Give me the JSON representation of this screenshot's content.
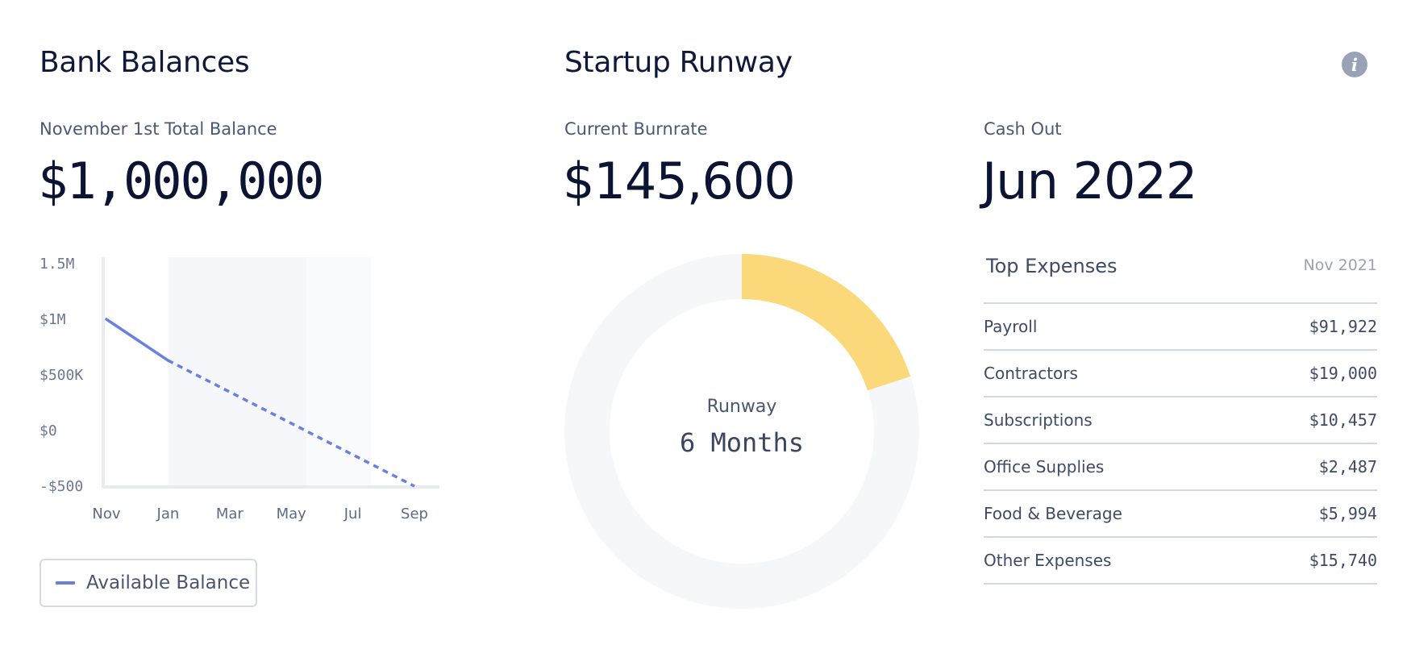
{
  "bank": {
    "title": "Bank Balances",
    "balance_label": "November 1st Total Balance",
    "balance_value": "$1,000,000"
  },
  "runway": {
    "title": "Startup Runway",
    "burnrate_label": "Current Burnrate",
    "burnrate_value": "$145,600",
    "cashout_label": "Cash Out",
    "cashout_value": "Jun 2022",
    "center_label": "Runway",
    "center_value": "6 Months"
  },
  "icons": {
    "info": "info-icon"
  },
  "legend": {
    "label": "Available Balance",
    "color": "#6b7fe0"
  },
  "expenses": {
    "title": "Top Expenses",
    "date": "Nov 2021",
    "rows": [
      {
        "name": "Payroll",
        "amount": "$91,922"
      },
      {
        "name": "Contractors",
        "amount": "$19,000"
      },
      {
        "name": "Subscriptions",
        "amount": "$10,457"
      },
      {
        "name": "Office Supplies",
        "amount": "$2,487"
      },
      {
        "name": "Food & Beverage",
        "amount": "$5,994"
      },
      {
        "name": "Other Expenses",
        "amount": "$15,740"
      }
    ]
  },
  "chart_data": [
    {
      "type": "line",
      "x_ticks": [
        "Nov",
        "Jan",
        "Mar",
        "May",
        "Jul",
        "Sep"
      ],
      "y_ticks": [
        "1.5M",
        "$1M",
        "$500K",
        "$0",
        "-$500"
      ],
      "ylim": [
        -500000,
        1500000
      ],
      "series": [
        {
          "name": "Available Balance",
          "color": "#6b7fe0",
          "actual": [
            {
              "x": "Nov",
              "y": 1000000
            },
            {
              "x": "Jan",
              "y": 630000
            }
          ],
          "projected": [
            {
              "x": "Jan",
              "y": 630000
            },
            {
              "x": "Sep",
              "y": -500000
            }
          ]
        }
      ]
    },
    {
      "type": "pie",
      "values": [
        6,
        24
      ],
      "colors": [
        "#fbd97a",
        "#f6f7f9"
      ]
    }
  ]
}
